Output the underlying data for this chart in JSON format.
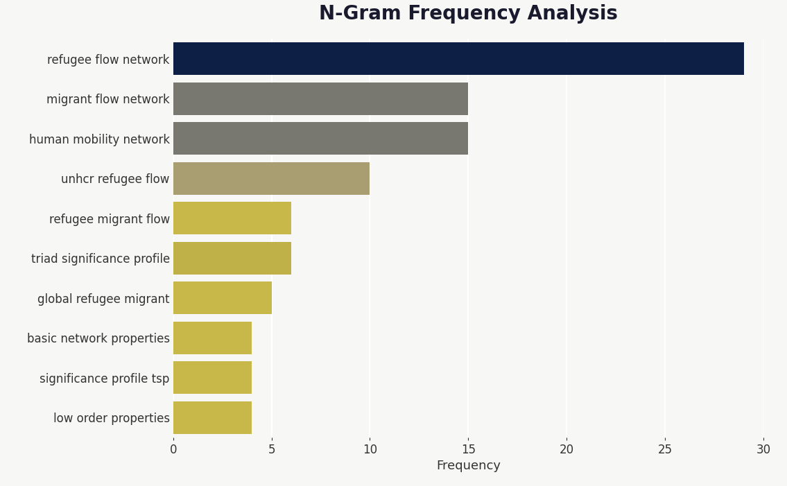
{
  "title": "N-Gram Frequency Analysis",
  "categories": [
    "refugee flow network",
    "migrant flow network",
    "human mobility network",
    "unhcr refugee flow",
    "refugee migrant flow",
    "triad significance profile",
    "global refugee migrant",
    "basic network properties",
    "significance profile tsp",
    "low order properties"
  ],
  "values": [
    29,
    15,
    15,
    10,
    6,
    6,
    5,
    4,
    4,
    4
  ],
  "bar_colors": [
    "#0d1f45",
    "#797870",
    "#797870",
    "#a89e72",
    "#c8b84a",
    "#c0b048",
    "#c8b84a",
    "#c8b84a",
    "#c8b84a",
    "#c8b84a"
  ],
  "xlabel": "Frequency",
  "ylabel": "",
  "xlim": [
    0,
    30
  ],
  "xticks": [
    0,
    5,
    10,
    15,
    20,
    25,
    30
  ],
  "background_color": "#f7f7f5",
  "plot_bg_color": "#f7f7f5",
  "title_fontsize": 20,
  "label_fontsize": 12,
  "tick_fontsize": 12,
  "xlabel_fontsize": 13,
  "bar_height": 0.82,
  "label_color": "#333333"
}
